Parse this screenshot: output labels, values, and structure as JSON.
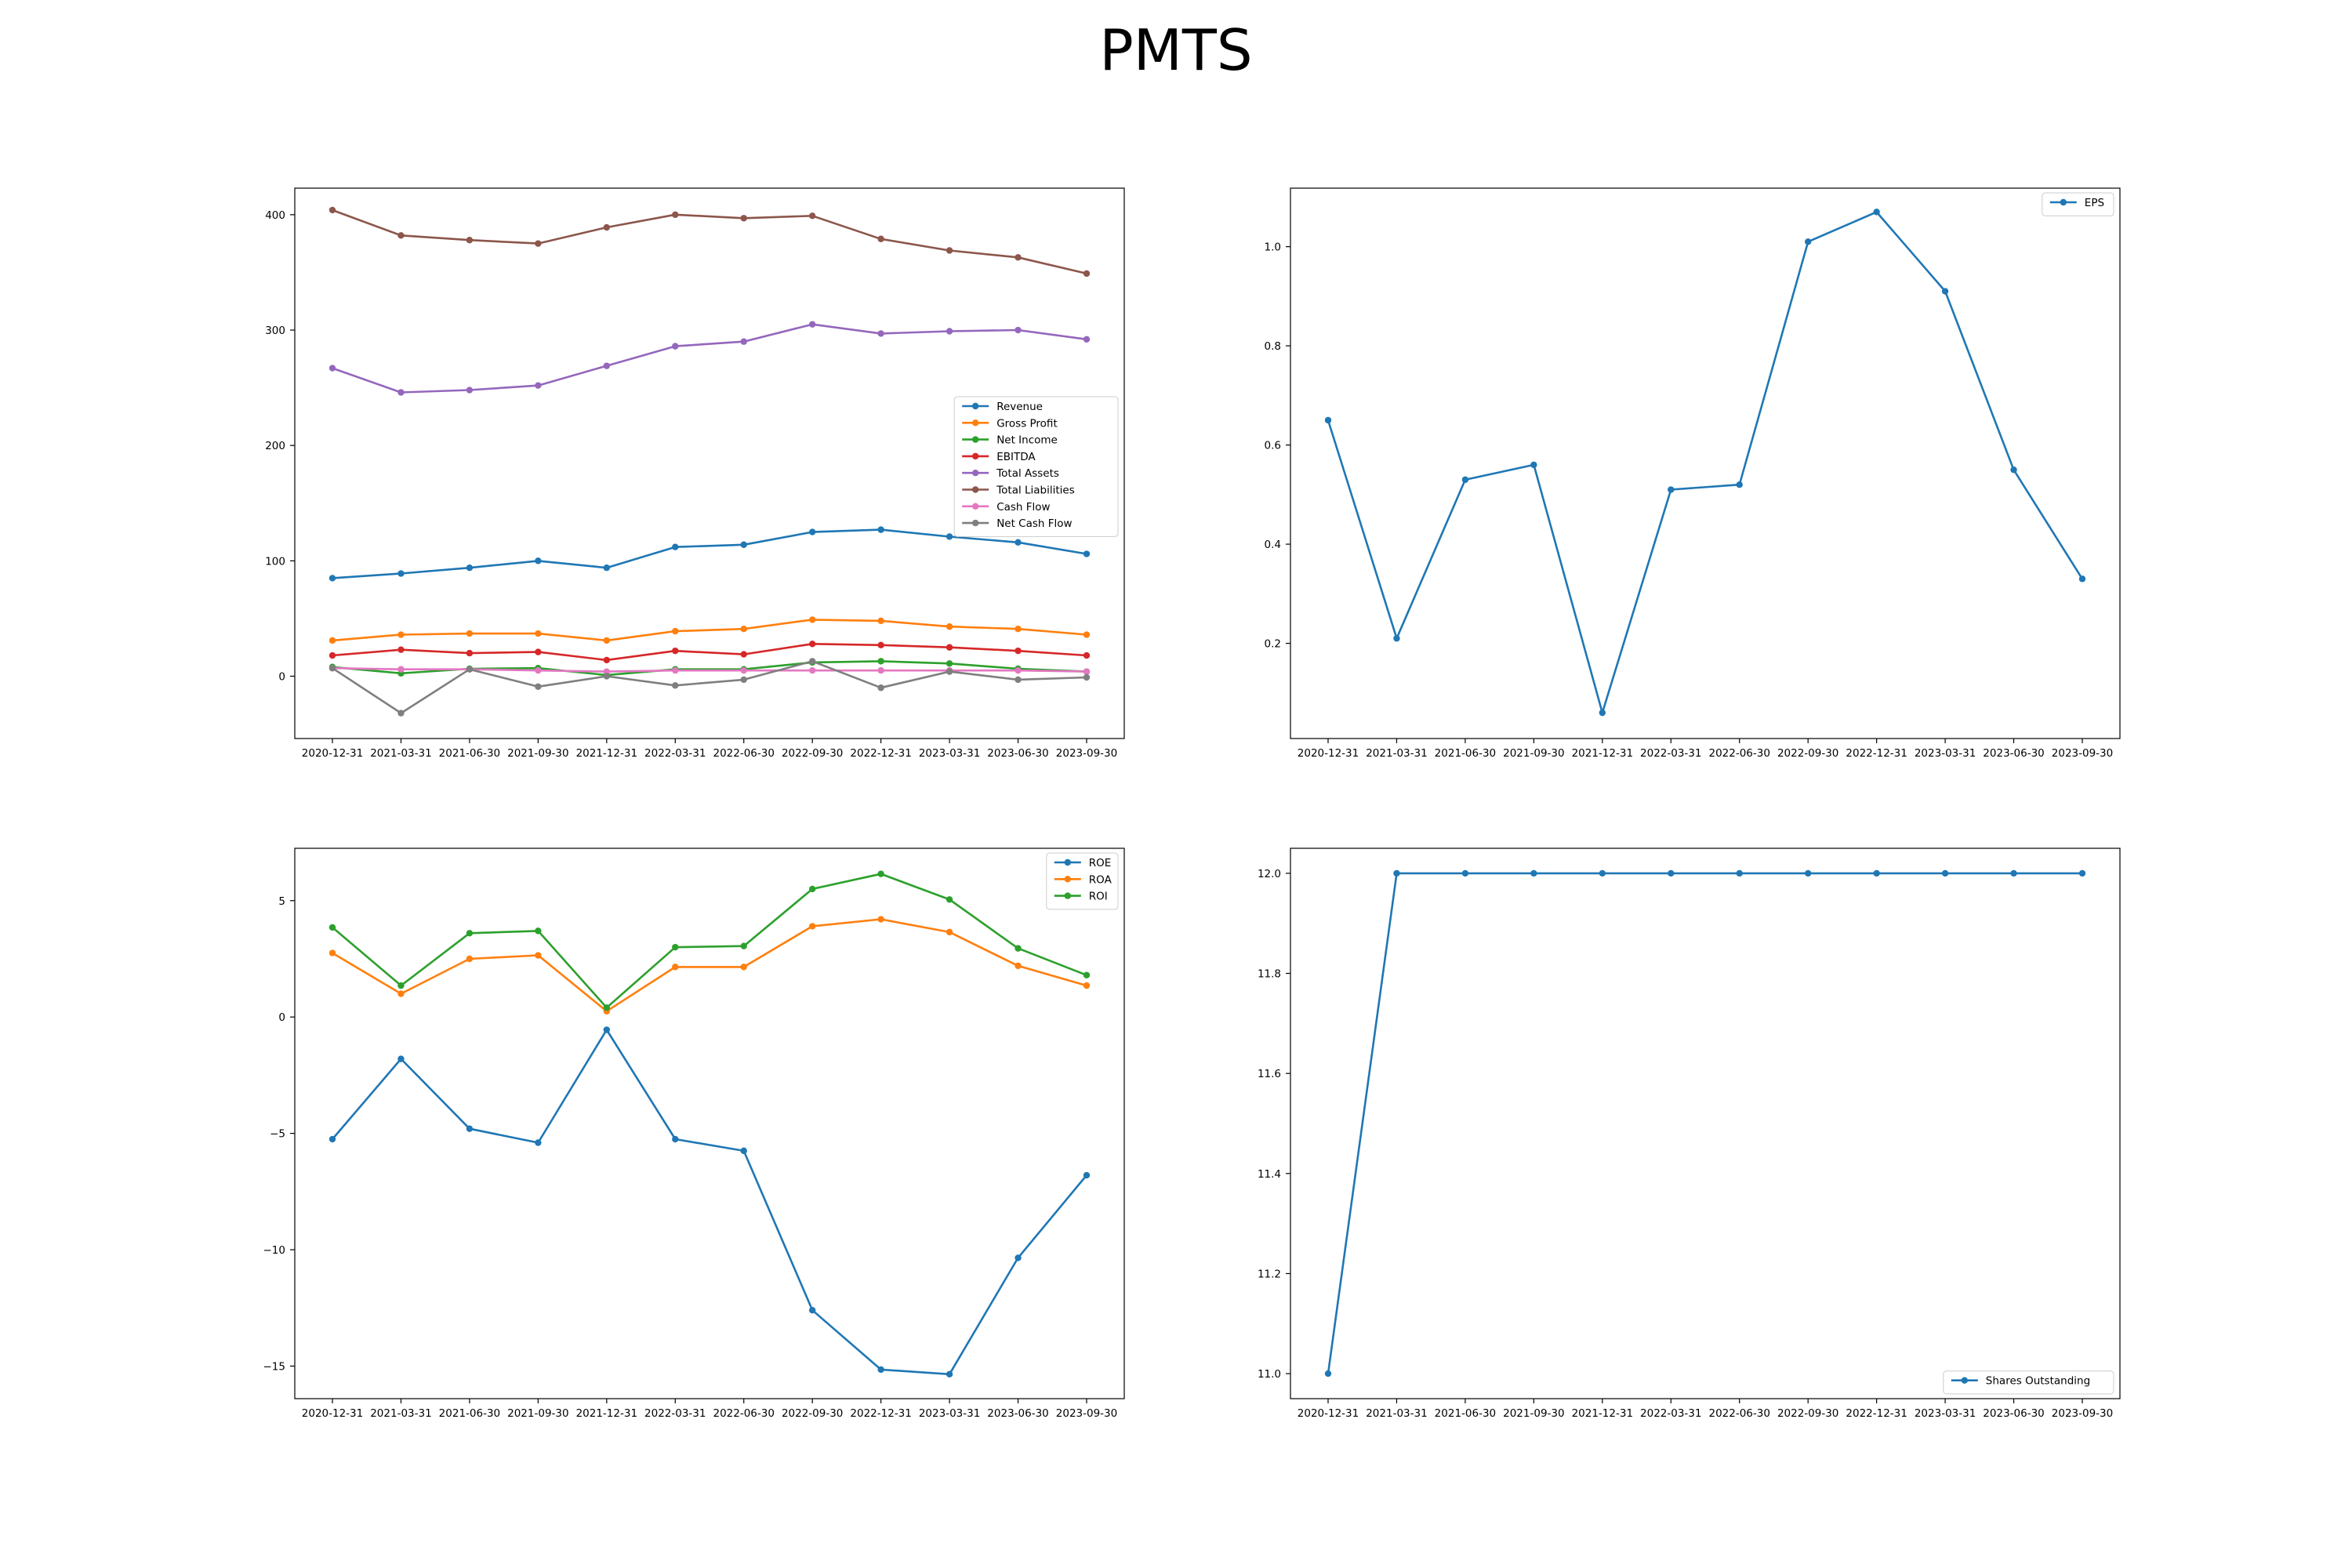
{
  "title": "PMTS",
  "colors": {
    "blue": "#1f77b4",
    "orange": "#ff7f0e",
    "green": "#2ca02c",
    "red": "#d62728",
    "purple": "#9467bd",
    "brown": "#8c564b",
    "pink": "#e377c2",
    "gray": "#7f7f7f"
  },
  "chart_data": [
    {
      "type": "line",
      "categories": [
        "2020-12-31",
        "2021-03-31",
        "2021-06-30",
        "2021-09-30",
        "2021-12-31",
        "2022-03-31",
        "2022-06-30",
        "2022-09-30",
        "2022-12-31",
        "2023-03-31",
        "2023-06-30",
        "2023-09-30"
      ],
      "ylim": [
        -54,
        423
      ],
      "yticks": [
        0,
        100,
        200,
        300,
        400
      ],
      "yticklabels": [
        "0",
        "100",
        "200",
        "300",
        "400"
      ],
      "legend": "center-right",
      "grid": false,
      "series": [
        {
          "name": "Revenue",
          "color": "#1f77b4",
          "values": [
            85,
            89,
            94,
            100,
            94,
            112,
            114,
            125,
            127,
            121,
            116,
            106
          ]
        },
        {
          "name": "Gross Profit",
          "color": "#ff7f0e",
          "values": [
            31,
            36,
            37,
            37,
            31,
            39,
            41,
            49,
            48,
            43,
            41,
            36
          ]
        },
        {
          "name": "Net Income",
          "color": "#2ca02c",
          "values": [
            8,
            2.5,
            6.5,
            7,
            1,
            6,
            6,
            12,
            13,
            11,
            6.5,
            4
          ]
        },
        {
          "name": "EBITDA",
          "color": "#d62728",
          "values": [
            18,
            23,
            20,
            21,
            14,
            22,
            19,
            28,
            27,
            25,
            22,
            18
          ]
        },
        {
          "name": "Total Assets",
          "color": "#9467bd",
          "values": [
            267,
            246,
            248,
            252,
            269,
            286,
            290,
            305,
            297,
            299,
            300,
            292
          ]
        },
        {
          "name": "Total Liabilities",
          "color": "#8c564b",
          "values": [
            404,
            382,
            378,
            375,
            389,
            400,
            397,
            399,
            379,
            369,
            363,
            349
          ]
        },
        {
          "name": "Cash Flow",
          "color": "#e377c2",
          "values": [
            7,
            6,
            6,
            5,
            4,
            5,
            5,
            5,
            5,
            5,
            5,
            4
          ]
        },
        {
          "name": "Net Cash Flow",
          "color": "#7f7f7f",
          "values": [
            7,
            -32,
            6,
            -9,
            0,
            -8,
            -3,
            13,
            -10,
            4,
            -3,
            -1
          ]
        }
      ]
    },
    {
      "type": "line",
      "categories": [
        "2020-12-31",
        "2021-03-31",
        "2021-06-30",
        "2021-09-30",
        "2021-12-31",
        "2022-03-31",
        "2022-06-30",
        "2022-09-30",
        "2022-12-31",
        "2023-03-31",
        "2023-06-30",
        "2023-09-30"
      ],
      "ylim": [
        0.008,
        1.118
      ],
      "yticks": [
        0.2,
        0.4,
        0.6,
        0.8,
        1.0
      ],
      "yticklabels": [
        "0.2",
        "0.4",
        "0.6",
        "0.8",
        "1.0"
      ],
      "legend": "top-right",
      "grid": false,
      "series": [
        {
          "name": "EPS",
          "color": "#1f77b4",
          "values": [
            0.65,
            0.21,
            0.53,
            0.56,
            0.06,
            0.51,
            0.52,
            1.01,
            1.07,
            0.91,
            0.55,
            0.33
          ]
        }
      ]
    },
    {
      "type": "line",
      "categories": [
        "2020-12-31",
        "2021-03-31",
        "2021-06-30",
        "2021-09-30",
        "2021-12-31",
        "2022-03-31",
        "2022-06-30",
        "2022-09-30",
        "2022-12-31",
        "2023-03-31",
        "2023-06-30",
        "2023-09-30"
      ],
      "ylim": [
        -16.4,
        7.25
      ],
      "yticks": [
        -15,
        -10,
        -5,
        0,
        5
      ],
      "yticklabels": [
        "−15",
        "−10",
        "−5",
        "0",
        "5"
      ],
      "legend": "top-right",
      "grid": false,
      "series": [
        {
          "name": "ROE",
          "color": "#1f77b4",
          "values": [
            -5.25,
            -1.8,
            -4.8,
            -5.4,
            -0.55,
            -5.25,
            -5.75,
            -12.6,
            -15.15,
            -15.35,
            -10.35,
            -6.8
          ]
        },
        {
          "name": "ROA",
          "color": "#ff7f0e",
          "values": [
            2.75,
            1.0,
            2.5,
            2.65,
            0.25,
            2.15,
            2.15,
            3.9,
            4.2,
            3.65,
            2.2,
            1.35
          ]
        },
        {
          "name": "ROI",
          "color": "#2ca02c",
          "values": [
            3.85,
            1.35,
            3.6,
            3.7,
            0.4,
            3.0,
            3.05,
            5.5,
            6.15,
            5.05,
            2.95,
            1.8
          ]
        }
      ]
    },
    {
      "type": "line",
      "categories": [
        "2020-12-31",
        "2021-03-31",
        "2021-06-30",
        "2021-09-30",
        "2021-12-31",
        "2022-03-31",
        "2022-06-30",
        "2022-09-30",
        "2022-12-31",
        "2023-03-31",
        "2023-06-30",
        "2023-09-30"
      ],
      "ylim": [
        10.95,
        12.05
      ],
      "yticks": [
        11.0,
        11.2,
        11.4,
        11.6,
        11.8,
        12.0
      ],
      "yticklabels": [
        "11.0",
        "11.2",
        "11.4",
        "11.6",
        "11.8",
        "12.0"
      ],
      "legend": "bottom-right",
      "grid": false,
      "series": [
        {
          "name": "Shares Outstanding",
          "color": "#1f77b4",
          "values": [
            11,
            12,
            12,
            12,
            12,
            12,
            12,
            12,
            12,
            12,
            12,
            12
          ]
        }
      ]
    }
  ]
}
